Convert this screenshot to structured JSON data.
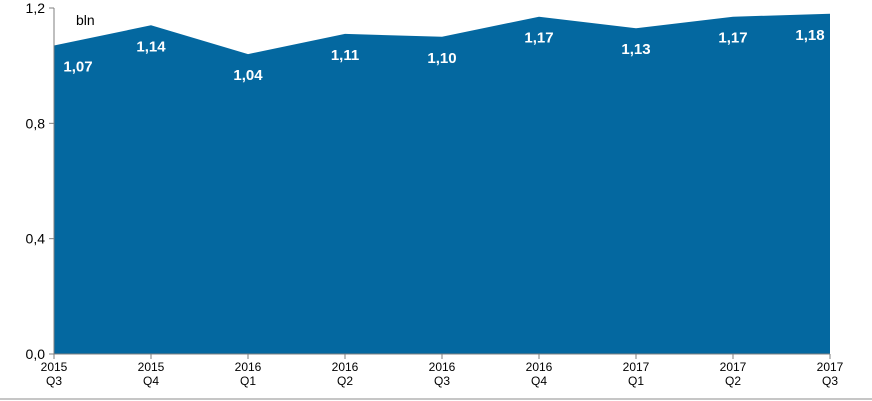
{
  "chart_data": {
    "type": "area",
    "unit_label": "bln",
    "categories": [
      [
        "2015",
        "Q3"
      ],
      [
        "2015",
        "Q4"
      ],
      [
        "2016",
        "Q1"
      ],
      [
        "2016",
        "Q2"
      ],
      [
        "2016",
        "Q3"
      ],
      [
        "2016",
        "Q4"
      ],
      [
        "2017",
        "Q1"
      ],
      [
        "2017",
        "Q2"
      ],
      [
        "2017",
        "Q3"
      ]
    ],
    "values": [
      1.07,
      1.14,
      1.04,
      1.11,
      1.1,
      1.17,
      1.13,
      1.17,
      1.18
    ],
    "data_labels": [
      "1,07",
      "1,14",
      "1,04",
      "1,11",
      "1,10",
      "1,17",
      "1,13",
      "1,17",
      "1,18"
    ],
    "yticks": [
      0,
      0.4,
      0.8,
      1.2
    ],
    "ytick_labels": [
      "0,0",
      "0,4",
      "0,8",
      "1,2"
    ],
    "ylim": [
      0,
      1.2
    ],
    "grid": false,
    "colors": {
      "area": "#0468a0",
      "axis": "#7f7f7f"
    }
  }
}
